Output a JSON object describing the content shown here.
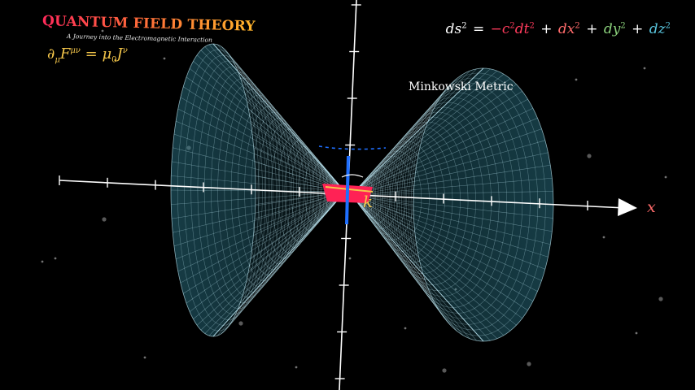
{
  "header": {
    "title": "QUANTUM FIELD THEORY",
    "subtitle": "A Journey into the Electromagnetic Interaction"
  },
  "equations": {
    "maxwell": {
      "partial": "∂",
      "mu": "μ",
      "F": "F",
      "upper": "μν",
      "equals": "=",
      "mu0": "μ",
      "zero": "0",
      "J": "J",
      "nu": "ν"
    },
    "metric": {
      "lhs": "ds",
      "lhs_exp": "2",
      "eq": "=",
      "t1": "−c",
      "t1_exp": "2",
      "t1b": "dt",
      "t1b_exp": "2",
      "plus1": "+",
      "t2": "dx",
      "t2_exp": "2",
      "plus2": "+",
      "t3": "dy",
      "t3_exp": "2",
      "plus3": "+",
      "t4": "dz",
      "t4_exp": "2"
    }
  },
  "labels": {
    "metric_caption": "Minkowski Metric",
    "x_axis": "x",
    "k_vector": "k"
  },
  "colors": {
    "background": "#000000",
    "mesh": "#bfe9f5",
    "cone_fill": "#2f7a8e",
    "axis": "#ffffff",
    "x_label": "#ff6b6b",
    "k_label": "#f4c64a",
    "vector_red": "#ff2255",
    "vector_blue": "#1f6fff",
    "time_term": "#ff3b5c",
    "dx_term": "#ff6b6b",
    "dy_term": "#8bd17c",
    "dz_term": "#58c4dd"
  }
}
